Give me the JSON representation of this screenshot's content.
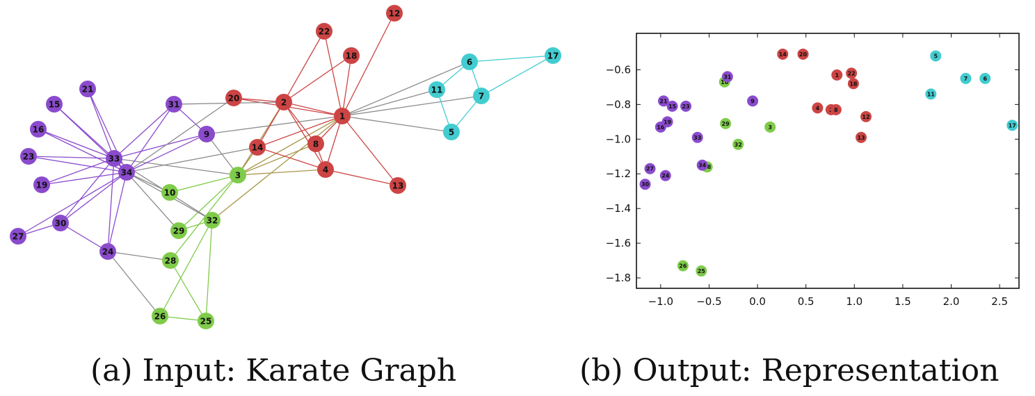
{
  "colors": {
    "purple": "#8A4BCC",
    "red": "#CC4444",
    "green": "#7FCB4A",
    "cyan": "#42CCD0",
    "gray_edge": "#8C8C8C"
  },
  "captions": {
    "a": "(a) Input: Karate Graph",
    "b": "(b) Output: Representation"
  },
  "graph": {
    "nodes": [
      {
        "id": "1",
        "group": "red"
      },
      {
        "id": "2",
        "group": "red"
      },
      {
        "id": "3",
        "group": "green"
      },
      {
        "id": "4",
        "group": "red"
      },
      {
        "id": "5",
        "group": "cyan"
      },
      {
        "id": "6",
        "group": "cyan"
      },
      {
        "id": "7",
        "group": "cyan"
      },
      {
        "id": "8",
        "group": "red"
      },
      {
        "id": "9",
        "group": "purple"
      },
      {
        "id": "10",
        "group": "green"
      },
      {
        "id": "11",
        "group": "cyan"
      },
      {
        "id": "12",
        "group": "red"
      },
      {
        "id": "13",
        "group": "red"
      },
      {
        "id": "14",
        "group": "red"
      },
      {
        "id": "15",
        "group": "purple"
      },
      {
        "id": "16",
        "group": "purple"
      },
      {
        "id": "17",
        "group": "cyan"
      },
      {
        "id": "18",
        "group": "red"
      },
      {
        "id": "19",
        "group": "purple"
      },
      {
        "id": "20",
        "group": "red"
      },
      {
        "id": "21",
        "group": "purple"
      },
      {
        "id": "22",
        "group": "red"
      },
      {
        "id": "23",
        "group": "purple"
      },
      {
        "id": "24",
        "group": "purple"
      },
      {
        "id": "25",
        "group": "green"
      },
      {
        "id": "26",
        "group": "green"
      },
      {
        "id": "27",
        "group": "purple"
      },
      {
        "id": "28",
        "group": "green"
      },
      {
        "id": "29",
        "group": "green"
      },
      {
        "id": "30",
        "group": "purple"
      },
      {
        "id": "31",
        "group": "purple"
      },
      {
        "id": "32",
        "group": "green"
      },
      {
        "id": "33",
        "group": "purple"
      },
      {
        "id": "34",
        "group": "purple"
      }
    ],
    "edges": [
      [
        "1",
        "2"
      ],
      [
        "1",
        "3"
      ],
      [
        "1",
        "4"
      ],
      [
        "1",
        "5"
      ],
      [
        "1",
        "6"
      ],
      [
        "1",
        "7"
      ],
      [
        "1",
        "8"
      ],
      [
        "1",
        "9"
      ],
      [
        "1",
        "11"
      ],
      [
        "1",
        "12"
      ],
      [
        "1",
        "13"
      ],
      [
        "1",
        "14"
      ],
      [
        "1",
        "18"
      ],
      [
        "1",
        "20"
      ],
      [
        "1",
        "22"
      ],
      [
        "1",
        "32"
      ],
      [
        "2",
        "3"
      ],
      [
        "2",
        "4"
      ],
      [
        "2",
        "8"
      ],
      [
        "2",
        "14"
      ],
      [
        "2",
        "18"
      ],
      [
        "2",
        "20"
      ],
      [
        "2",
        "22"
      ],
      [
        "2",
        "31"
      ],
      [
        "3",
        "4"
      ],
      [
        "3",
        "8"
      ],
      [
        "3",
        "9"
      ],
      [
        "3",
        "10"
      ],
      [
        "3",
        "14"
      ],
      [
        "3",
        "28"
      ],
      [
        "3",
        "29"
      ],
      [
        "3",
        "33"
      ],
      [
        "4",
        "8"
      ],
      [
        "4",
        "13"
      ],
      [
        "4",
        "14"
      ],
      [
        "5",
        "7"
      ],
      [
        "5",
        "11"
      ],
      [
        "6",
        "7"
      ],
      [
        "6",
        "11"
      ],
      [
        "6",
        "17"
      ],
      [
        "7",
        "17"
      ],
      [
        "9",
        "31"
      ],
      [
        "9",
        "33"
      ],
      [
        "9",
        "34"
      ],
      [
        "10",
        "34"
      ],
      [
        "14",
        "34"
      ],
      [
        "15",
        "33"
      ],
      [
        "15",
        "34"
      ],
      [
        "16",
        "33"
      ],
      [
        "16",
        "34"
      ],
      [
        "19",
        "33"
      ],
      [
        "19",
        "34"
      ],
      [
        "20",
        "34"
      ],
      [
        "21",
        "33"
      ],
      [
        "21",
        "34"
      ],
      [
        "23",
        "33"
      ],
      [
        "23",
        "34"
      ],
      [
        "24",
        "26"
      ],
      [
        "24",
        "28"
      ],
      [
        "24",
        "30"
      ],
      [
        "24",
        "33"
      ],
      [
        "24",
        "34"
      ],
      [
        "25",
        "26"
      ],
      [
        "25",
        "28"
      ],
      [
        "25",
        "32"
      ],
      [
        "26",
        "32"
      ],
      [
        "27",
        "30"
      ],
      [
        "27",
        "34"
      ],
      [
        "29",
        "32"
      ],
      [
        "29",
        "34"
      ],
      [
        "30",
        "33"
      ],
      [
        "30",
        "34"
      ],
      [
        "31",
        "33"
      ],
      [
        "31",
        "34"
      ],
      [
        "32",
        "33"
      ],
      [
        "32",
        "34"
      ],
      [
        "33",
        "34"
      ]
    ]
  },
  "chart_data": {
    "type": "scatter",
    "title": "",
    "xlabel": "",
    "ylabel": "",
    "xlim": [
      -1.25,
      2.7
    ],
    "ylim": [
      -1.86,
      -0.39
    ],
    "xticks": [
      "−1.0",
      "−0.5",
      "0.0",
      "0.5",
      "1.0",
      "1.5",
      "2.0",
      "2.5"
    ],
    "xtick_values": [
      -1.0,
      -0.5,
      0.0,
      0.5,
      1.0,
      1.5,
      2.0,
      2.5
    ],
    "yticks": [
      "−0.6",
      "−0.8",
      "−1.0",
      "−1.2",
      "−1.4",
      "−1.6",
      "−1.8"
    ],
    "ytick_values": [
      -0.6,
      -0.8,
      -1.0,
      -1.2,
      -1.4,
      -1.6,
      -1.8
    ],
    "grid": false,
    "points": [
      {
        "label": "1",
        "x": 0.82,
        "y": -0.63,
        "group": "red"
      },
      {
        "label": "2",
        "x": 0.76,
        "y": -0.83,
        "group": "red"
      },
      {
        "label": "3",
        "x": 0.13,
        "y": -0.93,
        "group": "green"
      },
      {
        "label": "4",
        "x": 0.62,
        "y": -0.82,
        "group": "red"
      },
      {
        "label": "5",
        "x": 1.84,
        "y": -0.52,
        "group": "cyan"
      },
      {
        "label": "6",
        "x": 2.35,
        "y": -0.65,
        "group": "cyan"
      },
      {
        "label": "7",
        "x": 2.15,
        "y": -0.65,
        "group": "cyan"
      },
      {
        "label": "8",
        "x": 0.81,
        "y": -0.83,
        "group": "red"
      },
      {
        "label": "9",
        "x": -0.05,
        "y": -0.78,
        "group": "purple"
      },
      {
        "label": "10",
        "x": -0.34,
        "y": -0.67,
        "group": "green"
      },
      {
        "label": "11",
        "x": 1.79,
        "y": -0.74,
        "group": "cyan"
      },
      {
        "label": "12",
        "x": 1.12,
        "y": -0.87,
        "group": "red"
      },
      {
        "label": "13",
        "x": 1.07,
        "y": -0.99,
        "group": "red"
      },
      {
        "label": "14",
        "x": 0.26,
        "y": -0.51,
        "group": "red"
      },
      {
        "label": "15",
        "x": -0.88,
        "y": -0.81,
        "group": "purple"
      },
      {
        "label": "16",
        "x": -1.0,
        "y": -0.93,
        "group": "purple"
      },
      {
        "label": "17",
        "x": 2.63,
        "y": -0.92,
        "group": "cyan"
      },
      {
        "label": "18",
        "x": 0.99,
        "y": -0.68,
        "group": "red"
      },
      {
        "label": "19",
        "x": -0.93,
        "y": -0.9,
        "group": "purple"
      },
      {
        "label": "20",
        "x": 0.47,
        "y": -0.51,
        "group": "red"
      },
      {
        "label": "21",
        "x": -0.97,
        "y": -0.78,
        "group": "purple"
      },
      {
        "label": "22",
        "x": 0.97,
        "y": -0.62,
        "group": "red"
      },
      {
        "label": "23",
        "x": -0.74,
        "y": -0.81,
        "group": "purple"
      },
      {
        "label": "24",
        "x": -0.95,
        "y": -1.21,
        "group": "purple"
      },
      {
        "label": "25",
        "x": -0.58,
        "y": -1.76,
        "group": "green"
      },
      {
        "label": "26",
        "x": -0.77,
        "y": -1.73,
        "group": "green"
      },
      {
        "label": "27",
        "x": -1.11,
        "y": -1.17,
        "group": "purple"
      },
      {
        "label": "28",
        "x": -0.52,
        "y": -1.16,
        "group": "green"
      },
      {
        "label": "29",
        "x": -0.33,
        "y": -0.91,
        "group": "green"
      },
      {
        "label": "30",
        "x": -1.16,
        "y": -1.26,
        "group": "purple"
      },
      {
        "label": "31",
        "x": -0.31,
        "y": -0.64,
        "group": "purple"
      },
      {
        "label": "32",
        "x": -0.2,
        "y": -1.03,
        "group": "green"
      },
      {
        "label": "33",
        "x": -0.62,
        "y": -0.99,
        "group": "purple"
      },
      {
        "label": "34",
        "x": -0.57,
        "y": -1.15,
        "group": "purple"
      }
    ]
  }
}
